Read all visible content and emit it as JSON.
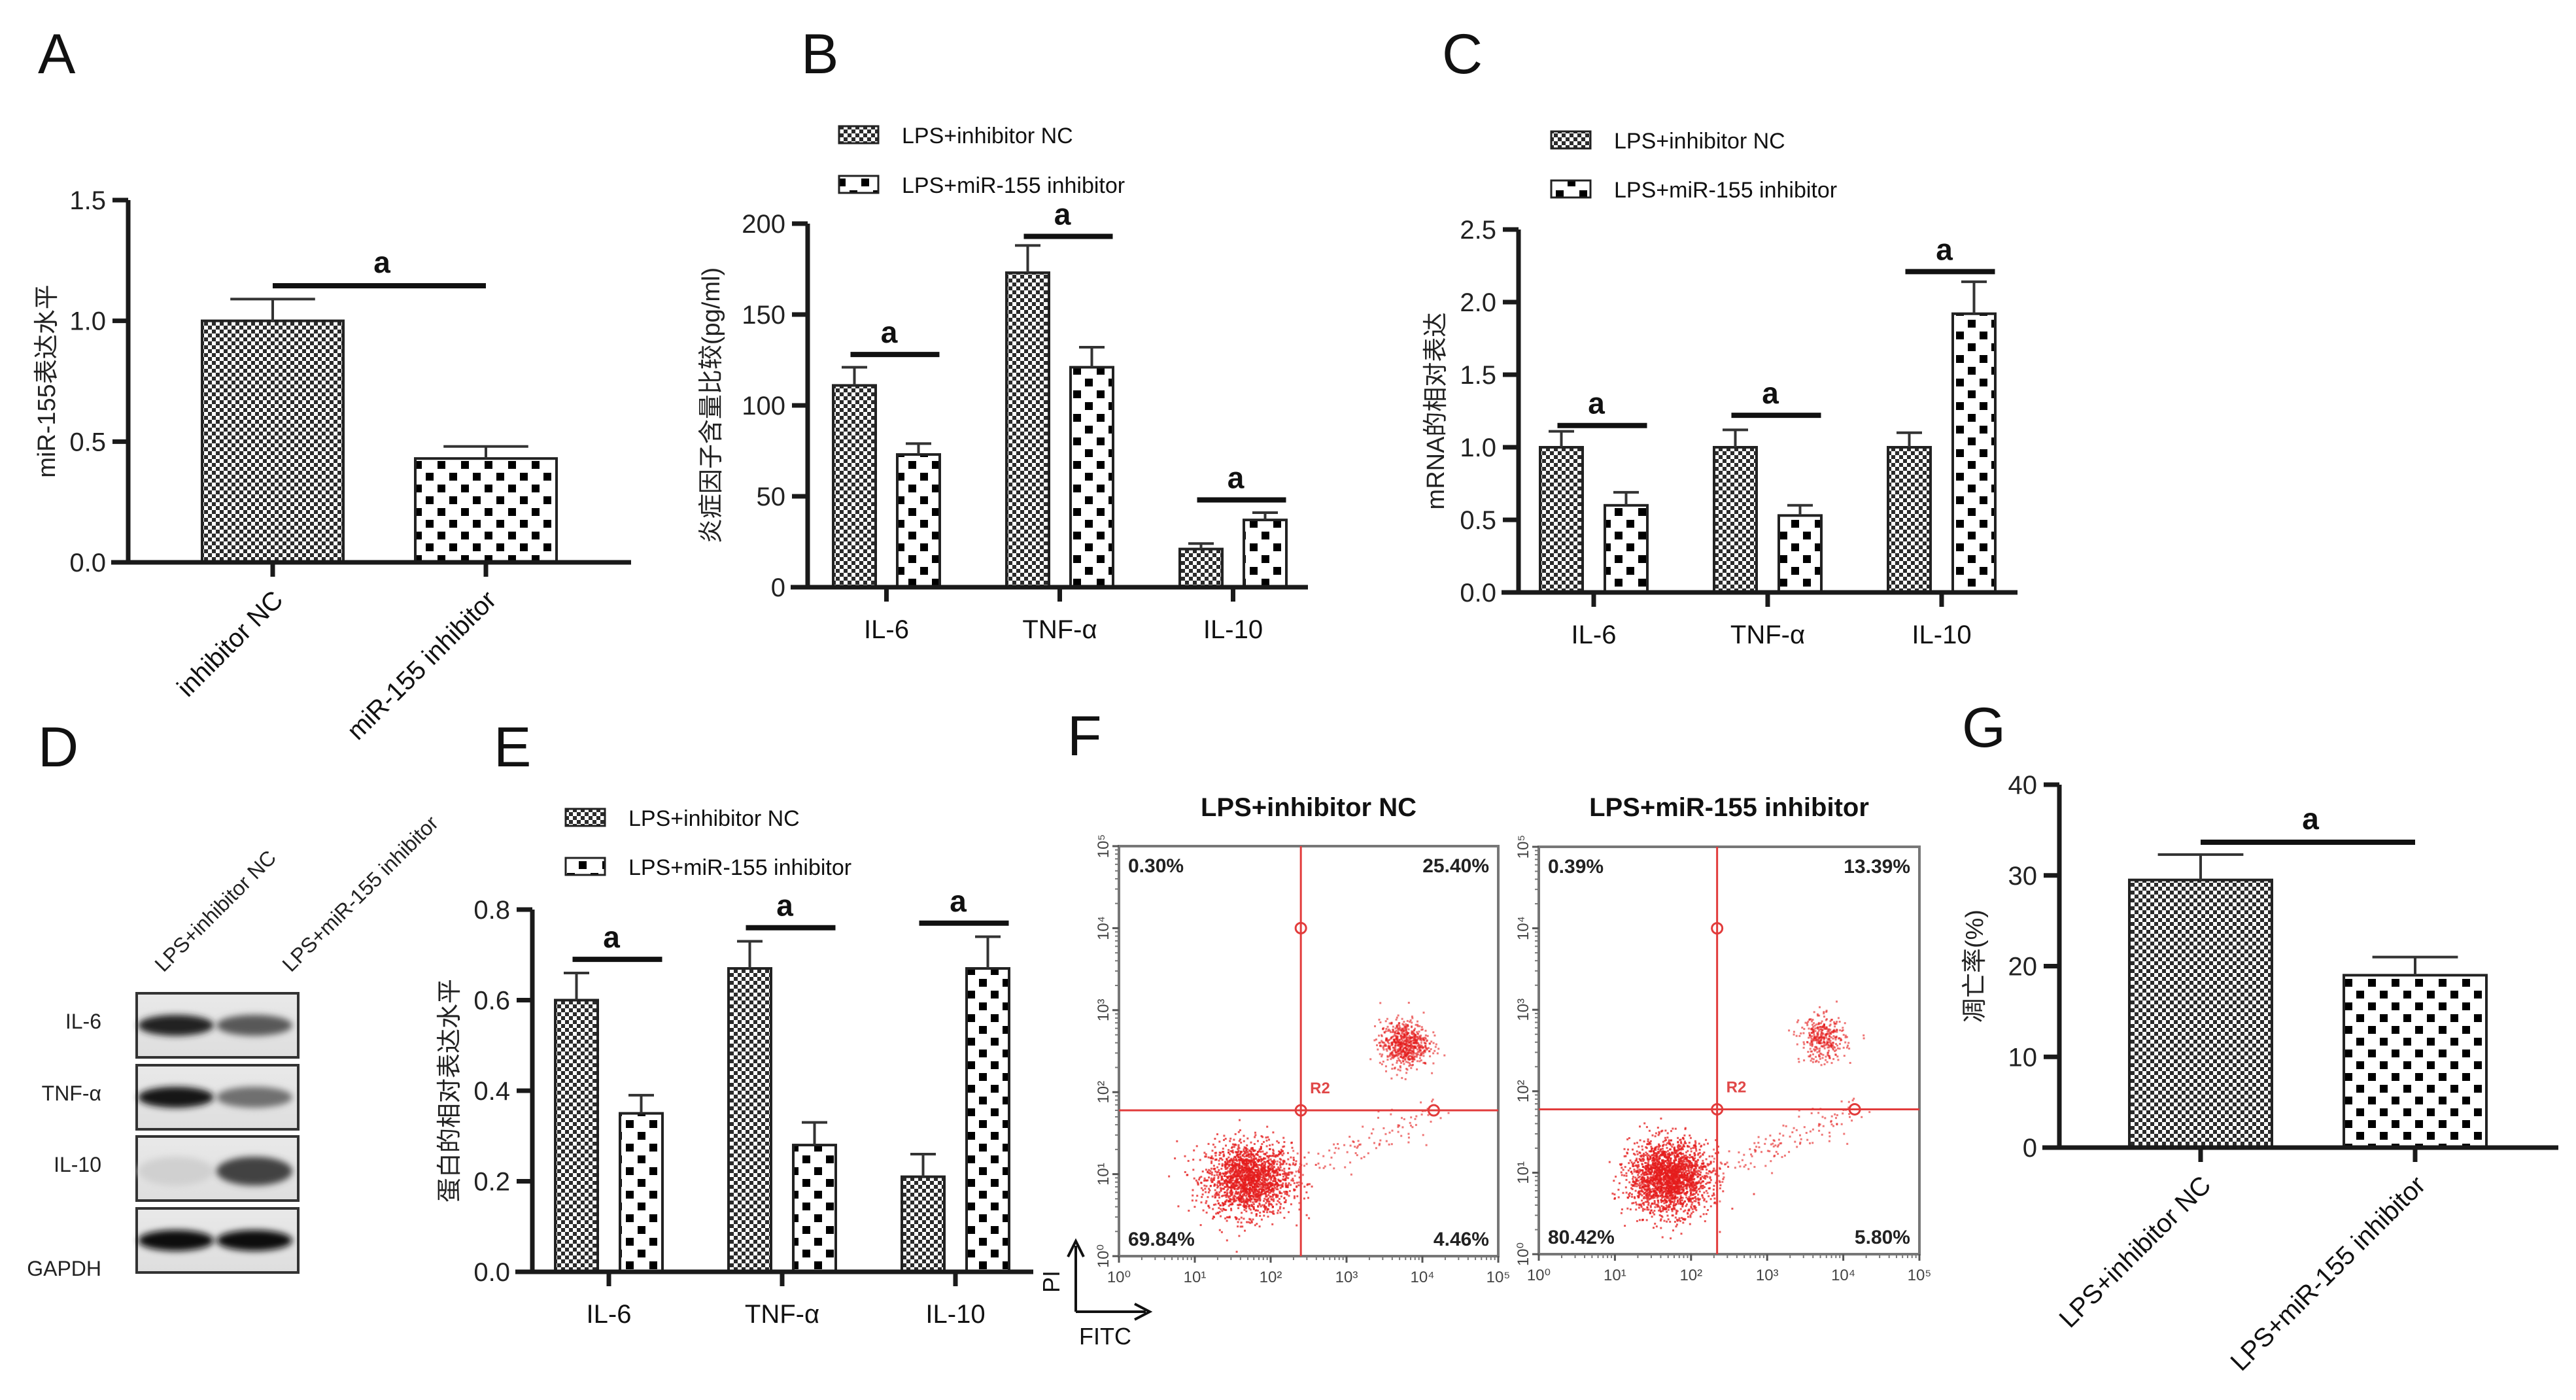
{
  "colors": {
    "axis": "#1a1a1a",
    "gate": "#e23b3b",
    "dots": "#e41c1c",
    "fine_checker_dark": "#2b2b2b",
    "coarse_checker_dark": "#000000"
  },
  "chart_data": [
    {
      "id": "A",
      "type": "bar",
      "panel_letter": "A",
      "title": "",
      "xlabel": "",
      "ylabel": "miR-155表达水平",
      "categories": [
        "inhibitor NC",
        "miR-155 inhibitor"
      ],
      "values": [
        1.0,
        0.43
      ],
      "error_upper": [
        1.09,
        0.48
      ],
      "patterns": [
        "fine",
        "coarse"
      ],
      "ylim": [
        0,
        1.5
      ],
      "yticks": [
        0.0,
        0.5,
        1.0,
        1.5
      ],
      "ytick_labels": [
        "0.0",
        "0.5",
        "1.0",
        "1.5"
      ],
      "significance": [
        {
          "between": [
            0,
            1
          ],
          "label": "a"
        }
      ],
      "legend": null,
      "grid": false
    },
    {
      "id": "B",
      "type": "bar",
      "panel_letter": "B",
      "title": "",
      "xlabel": "",
      "ylabel": "炎症因子含量比较(pg/ml)",
      "categories": [
        "IL-6",
        "TNF-α",
        "IL-10"
      ],
      "series": [
        {
          "name": "LPS+inhibitor NC",
          "pattern": "fine",
          "values": [
            111,
            173,
            21
          ],
          "error_upper": [
            121,
            188,
            24
          ]
        },
        {
          "name": "LPS+miR-155 inhibitor",
          "pattern": "coarse",
          "values": [
            73,
            121,
            37
          ],
          "error_upper": [
            79,
            132,
            41
          ]
        }
      ],
      "ylim": [
        0,
        200
      ],
      "yticks": [
        0,
        50,
        100,
        150,
        200
      ],
      "ytick_labels": [
        "0",
        "50",
        "100",
        "150",
        "200"
      ],
      "significance_label": "a",
      "significance_levels": [
        128,
        193,
        48
      ],
      "legend": "top-left",
      "grid": false
    },
    {
      "id": "C",
      "type": "bar",
      "panel_letter": "C",
      "title": "",
      "xlabel": "",
      "ylabel": "mRNA的相对表达",
      "categories": [
        "IL-6",
        "TNF-α",
        "IL-10"
      ],
      "series": [
        {
          "name": "LPS+inhibitor NC",
          "pattern": "fine",
          "values": [
            1.0,
            1.0,
            1.0
          ],
          "error_upper": [
            1.11,
            1.12,
            1.1
          ]
        },
        {
          "name": "LPS+miR-155 inhibitor",
          "pattern": "coarse",
          "values": [
            0.6,
            0.53,
            1.92
          ],
          "error_upper": [
            0.69,
            0.6,
            2.14
          ]
        }
      ],
      "ylim": [
        0,
        2.5
      ],
      "yticks": [
        0.0,
        0.5,
        1.0,
        1.5,
        2.0,
        2.5
      ],
      "ytick_labels": [
        "0.0",
        "0.5",
        "1.0",
        "1.5",
        "2.0",
        "2.5"
      ],
      "significance_label": "a",
      "significance_levels": [
        1.15,
        1.22,
        2.21
      ],
      "legend": "top-left",
      "grid": false
    },
    {
      "id": "E",
      "type": "bar",
      "panel_letter": "E",
      "title": "",
      "xlabel": "",
      "ylabel": "蛋白的相对表达水平",
      "categories": [
        "IL-6",
        "TNF-α",
        "IL-10"
      ],
      "series": [
        {
          "name": "LPS+inhibitor NC",
          "pattern": "fine",
          "values": [
            0.6,
            0.67,
            0.21
          ],
          "error_upper": [
            0.66,
            0.73,
            0.26
          ]
        },
        {
          "name": "LPS+miR-155 inhibitor",
          "pattern": "coarse",
          "values": [
            0.35,
            0.28,
            0.67
          ],
          "error_upper": [
            0.39,
            0.33,
            0.74
          ]
        }
      ],
      "ylim": [
        0,
        0.8
      ],
      "yticks": [
        0.0,
        0.2,
        0.4,
        0.6,
        0.8
      ],
      "ytick_labels": [
        "0.0",
        "0.2",
        "0.4",
        "0.6",
        "0.8"
      ],
      "significance_label": "a",
      "significance_levels": [
        0.69,
        0.76,
        0.77
      ],
      "legend": "top-left",
      "grid": false
    },
    {
      "id": "G",
      "type": "bar",
      "panel_letter": "G",
      "title": "",
      "xlabel": "",
      "ylabel": "凋亡率(%)",
      "categories": [
        "LPS+inhibitor NC",
        "LPS+miR-155 inhibitor"
      ],
      "values": [
        29.5,
        19.0
      ],
      "error_upper": [
        32.3,
        21.0
      ],
      "patterns": [
        "fine",
        "coarse"
      ],
      "ylim": [
        0,
        40
      ],
      "yticks": [
        0,
        10,
        20,
        30,
        40
      ],
      "ytick_labels": [
        "0",
        "10",
        "20",
        "30",
        "40"
      ],
      "significance": [
        {
          "between": [
            0,
            1
          ],
          "label": "a"
        }
      ],
      "legend": null,
      "grid": false
    },
    {
      "id": "F",
      "type": "scatter",
      "panel_letter": "F",
      "x_axis_name": "FITC",
      "y_axis_name": "PI",
      "x_scale": "log",
      "y_scale": "log",
      "xlim": [
        1,
        100000
      ],
      "ylim": [
        1,
        100000
      ],
      "tick_labels": [
        "10⁰",
        "10¹",
        "10²",
        "10³",
        "10⁴",
        "10⁵"
      ],
      "gate_name": "R2",
      "plots": [
        {
          "title": "LPS+inhibitor NC",
          "quadrants": {
            "upper_left": "0.30%",
            "upper_right": "25.40%",
            "lower_left": "69.84%",
            "lower_right": "4.46%"
          },
          "gate_x": 250,
          "gate_y": 60,
          "clusters": [
            {
              "name": "live",
              "center_log": [
                1.7,
                0.95
              ],
              "spread_log": [
                0.28,
                0.22
              ],
              "fraction": 0.6984
            },
            {
              "name": "late-apoptotic",
              "center_log": [
                3.75,
                2.6
              ],
              "spread_log": [
                0.16,
                0.14
              ],
              "fraction": 0.254
            },
            {
              "name": "early-apoptotic",
              "center_log": [
                3.0,
                1.3
              ],
              "spread_log": [
                0.45,
                0.3
              ],
              "fraction": 0.0446
            }
          ]
        },
        {
          "title": "LPS+miR-155 inhibitor",
          "quadrants": {
            "upper_left": "0.39%",
            "upper_right": "13.39%",
            "lower_left": "80.42%",
            "lower_right": "5.80%"
          },
          "gate_x": 220,
          "gate_y": 60,
          "clusters": [
            {
              "name": "live",
              "center_log": [
                1.7,
                0.95
              ],
              "spread_log": [
                0.26,
                0.22
              ],
              "fraction": 0.8042
            },
            {
              "name": "late-apoptotic",
              "center_log": [
                3.72,
                2.65
              ],
              "spread_log": [
                0.15,
                0.14
              ],
              "fraction": 0.1339
            },
            {
              "name": "early-apoptotic",
              "center_log": [
                3.0,
                1.3
              ],
              "spread_log": [
                0.45,
                0.3
              ],
              "fraction": 0.058
            }
          ]
        }
      ]
    }
  ],
  "western_blot": {
    "panel_letter": "D",
    "lanes": [
      "LPS+inhibitor NC",
      "LPS+miR-155 inhibitor"
    ],
    "proteins": [
      {
        "name": "IL-6",
        "band_intensity": [
          0.9,
          0.65
        ]
      },
      {
        "name": "TNF-α",
        "band_intensity": [
          0.95,
          0.55
        ]
      },
      {
        "name": "IL-10",
        "band_intensity": [
          0.12,
          0.75
        ]
      },
      {
        "name": "GAPDH",
        "band_intensity": [
          1.0,
          1.0
        ]
      }
    ]
  }
}
